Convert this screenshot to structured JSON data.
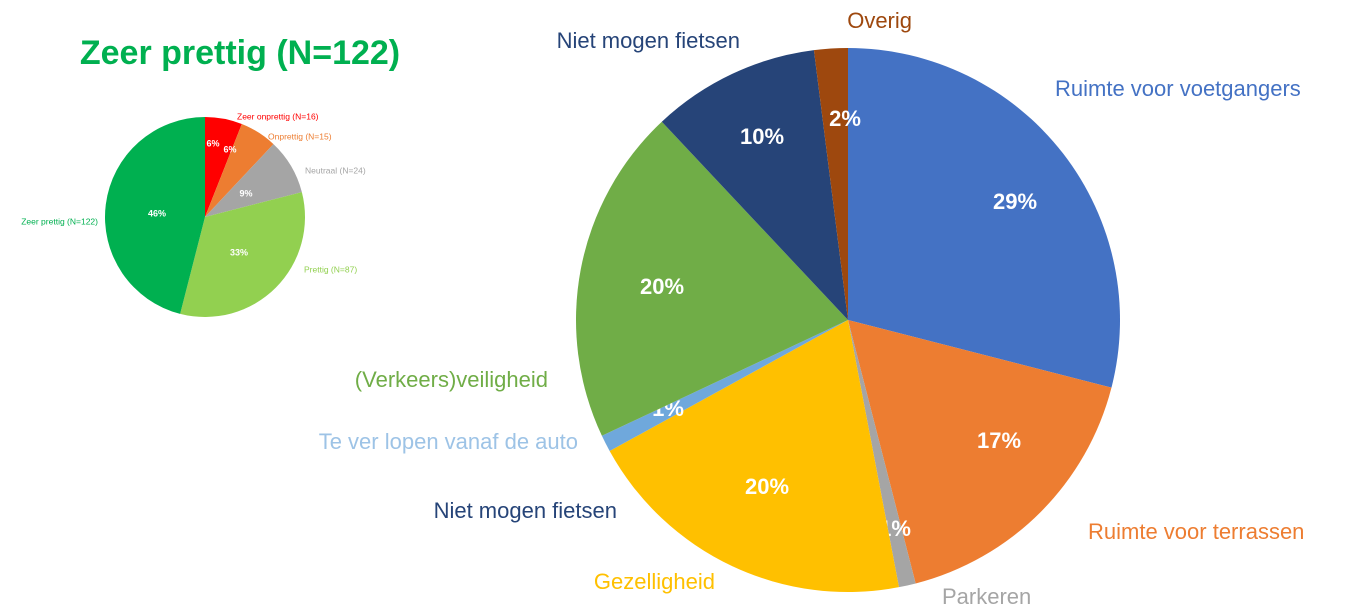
{
  "heading": "Zeer prettig (N=122)",
  "chart_data": [
    {
      "type": "pie",
      "categories": [
        "Zeer onprettig (N=16)",
        "Onprettig (N=15)",
        "Neutraal (N=24)",
        "Prettig (N=87)",
        "Zeer prettig (N=122)"
      ],
      "values": [
        6,
        6,
        9,
        33,
        46
      ],
      "value_labels": [
        "6%",
        "6%",
        "9%",
        "33%",
        "46%"
      ],
      "colors": [
        "#ff0000",
        "#ed7d31",
        "#a5a5a5",
        "#92d050",
        "#00b050"
      ]
    },
    {
      "type": "pie",
      "categories": [
        "Ruimte voor voetgangers",
        "Ruimte voor terrassen",
        "Parkeren",
        "Gezelligheid",
        "Niet mogen fietsen",
        "Te ver lopen vanaf de auto",
        "(Verkeers)veiligheid",
        "Niet mogen fietsen",
        "Overig"
      ],
      "values": [
        29,
        17,
        1,
        20,
        0,
        1,
        20,
        10,
        2
      ],
      "value_labels": [
        "29%",
        "17%",
        "1%",
        "20%",
        null,
        "1%",
        "20%",
        "10%",
        "2%"
      ],
      "colors": [
        "#4472c4",
        "#ed7d31",
        "#a5a5a5",
        "#ffc000",
        "#264478",
        "#6fa8dc",
        "#70ad47",
        "#264478",
        "#9e480e"
      ]
    }
  ]
}
